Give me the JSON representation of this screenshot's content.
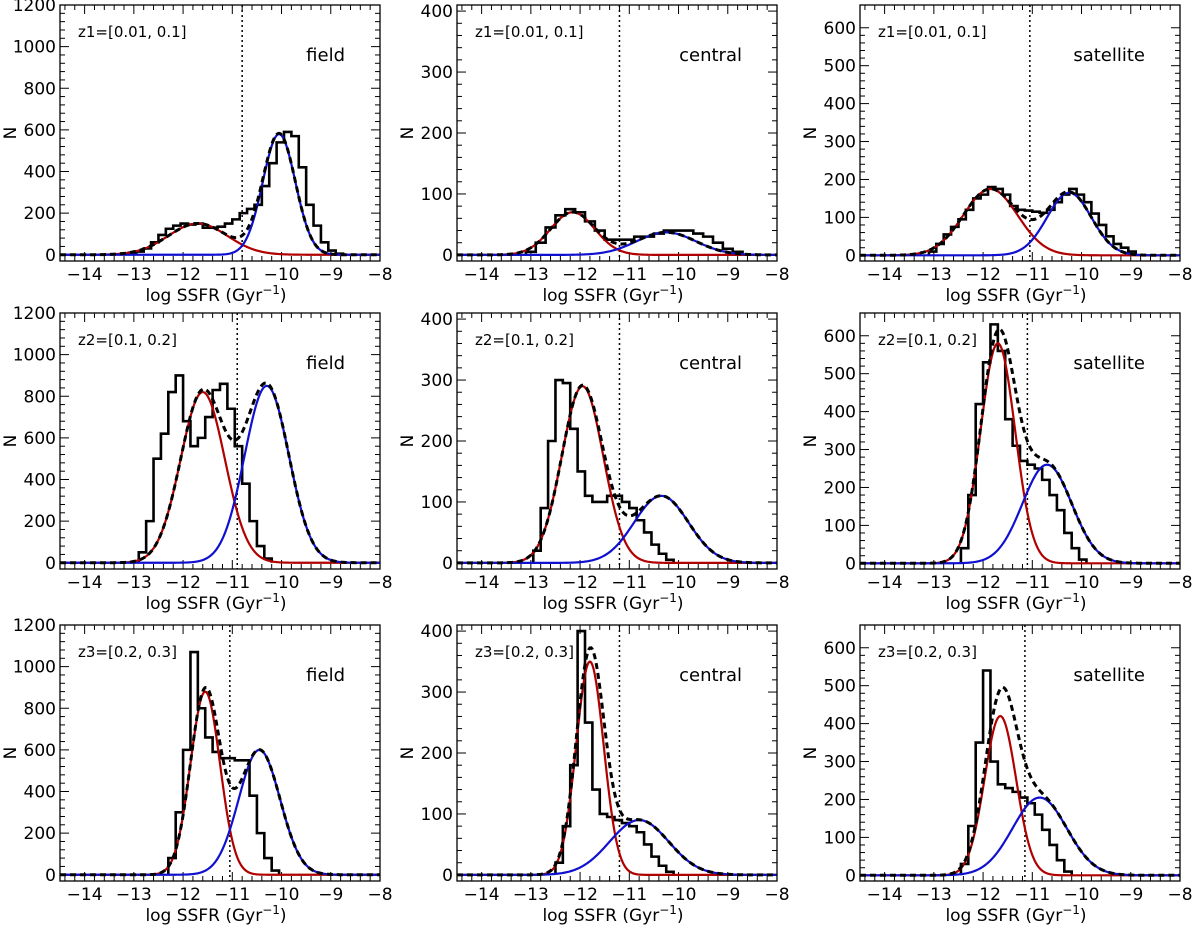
{
  "chart_data": [
    {
      "panel": "z1-field",
      "type": "histogram",
      "z_label": "z1=[0.01, 0.1]",
      "population": "field",
      "ylim": [
        -30,
        1200
      ],
      "yticks": [
        0,
        200,
        400,
        600,
        800,
        1000,
        1200
      ],
      "xlim": [
        -14.5,
        -8
      ],
      "xticks": [
        -14,
        -13,
        -12,
        -11,
        -10,
        -9,
        -8
      ],
      "xlabel": "log SSFR (Gyr",
      "xlabel_sup": "−1",
      "xlabel_close": ")",
      "ylabel": "N",
      "divider_x": -10.8,
      "red": {
        "mu": -11.7,
        "sigma": 0.6,
        "amp": 150
      },
      "blue": {
        "mu": -10.05,
        "sigma": 0.33,
        "amp": 580
      },
      "bins": {
        "start": -13.25,
        "width": 0.15,
        "values": [
          5,
          10,
          15,
          30,
          60,
          95,
          125,
          140,
          150,
          145,
          150,
          130,
          130,
          135,
          150,
          170,
          200,
          220,
          240,
          330,
          440,
          540,
          590,
          570,
          420,
          240,
          140,
          60,
          20,
          5
        ]
      }
    },
    {
      "panel": "z1-central",
      "type": "histogram",
      "z_label": "z1=[0.01, 0.1]",
      "population": "central",
      "ylim": [
        -10,
        410
      ],
      "yticks": [
        0,
        100,
        200,
        300,
        400
      ],
      "xlim": [
        -14.5,
        -8
      ],
      "xticks": [
        -14,
        -13,
        -12,
        -11,
        -10,
        -9,
        -8
      ],
      "xlabel": "log SSFR (Gyr",
      "xlabel_sup": "−1",
      "xlabel_close": ")",
      "ylabel": "N",
      "divider_x": -11.2,
      "red": {
        "mu": -12.15,
        "sigma": 0.45,
        "amp": 70
      },
      "blue": {
        "mu": -10.25,
        "sigma": 0.6,
        "amp": 37
      },
      "bins": {
        "start": -13.1,
        "width": 0.2,
        "values": [
          5,
          20,
          45,
          65,
          75,
          70,
          55,
          40,
          25,
          25,
          25,
          30,
          30,
          35,
          40,
          40,
          40,
          35,
          30,
          20,
          10,
          5
        ]
      }
    },
    {
      "panel": "z1-satellite",
      "type": "histogram",
      "z_label": "z1=[0.01, 0.1]",
      "population": "satellite",
      "ylim": [
        -15,
        660
      ],
      "yticks": [
        0,
        100,
        200,
        300,
        400,
        500,
        600
      ],
      "xlim": [
        -14.5,
        -8
      ],
      "xticks": [
        -14,
        -13,
        -12,
        -11,
        -10,
        -9,
        -8
      ],
      "xlabel": "log SSFR (Gyr",
      "xlabel_sup": "−1",
      "xlabel_close": ")",
      "ylabel": "N",
      "divider_x": -11.05,
      "red": {
        "mu": -11.85,
        "sigma": 0.55,
        "amp": 175
      },
      "blue": {
        "mu": -10.25,
        "sigma": 0.45,
        "amp": 165
      },
      "bins": {
        "start": -13.1,
        "width": 0.15,
        "values": [
          10,
          30,
          55,
          75,
          95,
          120,
          150,
          160,
          180,
          175,
          160,
          130,
          120,
          118,
          115,
          112,
          120,
          140,
          160,
          175,
          160,
          140,
          110,
          80,
          50,
          30,
          20,
          10
        ]
      }
    },
    {
      "panel": "z2-field",
      "type": "histogram",
      "z_label": "z2=[0.1, 0.2]",
      "population": "field",
      "ylim": [
        -30,
        1200
      ],
      "yticks": [
        0,
        200,
        400,
        600,
        800,
        1000,
        1200
      ],
      "xlim": [
        -14.5,
        -8
      ],
      "xticks": [
        -14,
        -13,
        -12,
        -11,
        -10,
        -9,
        -8
      ],
      "xlabel": "log SSFR (Gyr",
      "xlabel_sup": "−1",
      "xlabel_close": ")",
      "ylabel": "N",
      "divider_x": -10.9,
      "red": {
        "mu": -11.6,
        "sigma": 0.45,
        "amp": 820
      },
      "blue": {
        "mu": -10.3,
        "sigma": 0.45,
        "amp": 850
      },
      "bins": {
        "start": -12.9,
        "width": 0.15,
        "values": [
          50,
          200,
          500,
          620,
          820,
          900,
          680,
          560,
          600,
          700,
          830,
          860,
          740,
          560,
          380,
          200,
          80,
          20
        ]
      }
    },
    {
      "panel": "z2-central",
      "type": "histogram",
      "z_label": "z2=[0.1, 0.2]",
      "population": "central",
      "ylim": [
        -10,
        410
      ],
      "yticks": [
        0,
        100,
        200,
        300,
        400
      ],
      "xlim": [
        -14.5,
        -8
      ],
      "xticks": [
        -14,
        -13,
        -12,
        -11,
        -10,
        -9,
        -8
      ],
      "xlabel": "log SSFR (Gyr",
      "xlabel_sup": "−1",
      "xlabel_close": ")",
      "ylabel": "N",
      "divider_x": -11.2,
      "red": {
        "mu": -11.95,
        "sigma": 0.42,
        "amp": 290
      },
      "blue": {
        "mu": -10.35,
        "sigma": 0.55,
        "amp": 110
      },
      "bins": {
        "start": -12.95,
        "width": 0.15,
        "values": [
          20,
          90,
          200,
          300,
          295,
          220,
          150,
          110,
          100,
          100,
          110,
          110,
          100,
          90,
          70,
          50,
          30,
          15,
          5
        ]
      }
    },
    {
      "panel": "z2-satellite",
      "type": "histogram",
      "z_label": "z2=[0.1, 0.2]",
      "population": "satellite",
      "ylim": [
        -15,
        660
      ],
      "yticks": [
        0,
        100,
        200,
        300,
        400,
        500,
        600
      ],
      "xlim": [
        -14.5,
        -8
      ],
      "xticks": [
        -14,
        -13,
        -12,
        -11,
        -10,
        -9,
        -8
      ],
      "xlabel": "log SSFR (Gyr",
      "xlabel_sup": "−1",
      "xlabel_close": ")",
      "ylabel": "N",
      "divider_x": -11.1,
      "red": {
        "mu": -11.7,
        "sigma": 0.35,
        "amp": 580
      },
      "blue": {
        "mu": -10.7,
        "sigma": 0.5,
        "amp": 260
      },
      "bins": {
        "start": -12.45,
        "width": 0.15,
        "values": [
          40,
          180,
          420,
          530,
          630,
          560,
          380,
          310,
          270,
          260,
          250,
          220,
          180,
          140,
          80,
          40,
          10
        ]
      }
    },
    {
      "panel": "z3-field",
      "type": "histogram",
      "z_label": "z3=[0.2, 0.3]",
      "population": "field",
      "ylim": [
        -30,
        1200
      ],
      "yticks": [
        0,
        200,
        400,
        600,
        800,
        1000,
        1200
      ],
      "xlim": [
        -14.5,
        -8
      ],
      "xticks": [
        -14,
        -13,
        -12,
        -11,
        -10,
        -9,
        -8
      ],
      "xlabel": "log SSFR (Gyr",
      "xlabel_sup": "−1",
      "xlabel_close": ")",
      "ylabel": "N",
      "divider_x": -11.05,
      "red": {
        "mu": -11.55,
        "sigma": 0.3,
        "amp": 880
      },
      "blue": {
        "mu": -10.45,
        "sigma": 0.42,
        "amp": 600
      },
      "bins": {
        "start": -12.3,
        "width": 0.15,
        "values": [
          80,
          300,
          600,
          1070,
          800,
          660,
          590,
          560,
          560,
          550,
          550,
          380,
          200,
          80,
          20
        ]
      }
    },
    {
      "panel": "z3-central",
      "type": "histogram",
      "z_label": "z3=[0.2, 0.3]",
      "population": "central",
      "ylim": [
        -10,
        410
      ],
      "yticks": [
        0,
        100,
        200,
        300,
        400
      ],
      "xlim": [
        -14.5,
        -8
      ],
      "xticks": [
        -14,
        -13,
        -12,
        -11,
        -10,
        -9,
        -8
      ],
      "xlabel": "log SSFR (Gyr",
      "xlabel_sup": "−1",
      "xlabel_close": ")",
      "ylabel": "N",
      "divider_x": -11.2,
      "red": {
        "mu": -11.8,
        "sigma": 0.28,
        "amp": 350
      },
      "blue": {
        "mu": -10.8,
        "sigma": 0.6,
        "amp": 90
      },
      "bins": {
        "start": -12.5,
        "width": 0.15,
        "values": [
          20,
          80,
          180,
          400,
          250,
          140,
          100,
          95,
          90,
          85,
          80,
          70,
          50,
          30,
          15,
          5
        ]
      }
    },
    {
      "panel": "z3-satellite",
      "type": "histogram",
      "z_label": "z3=[0.2, 0.3]",
      "population": "satellite",
      "ylim": [
        -15,
        660
      ],
      "yticks": [
        0,
        100,
        200,
        300,
        400,
        500,
        600
      ],
      "xlim": [
        -14.5,
        -8
      ],
      "xticks": [
        -14,
        -13,
        -12,
        -11,
        -10,
        -9,
        -8
      ],
      "xlabel": "log SSFR (Gyr",
      "xlabel_sup": "−1",
      "xlabel_close": ")",
      "ylabel": "N",
      "divider_x": -11.15,
      "red": {
        "mu": -11.65,
        "sigma": 0.32,
        "amp": 420
      },
      "blue": {
        "mu": -10.85,
        "sigma": 0.55,
        "amp": 205
      },
      "bins": {
        "start": -12.45,
        "width": 0.15,
        "values": [
          30,
          130,
          350,
          540,
          300,
          240,
          230,
          220,
          205,
          190,
          160,
          120,
          80,
          40,
          10
        ]
      }
    }
  ],
  "colors": {
    "red_component": "#b00000",
    "blue_component": "#1010d0",
    "histogram": "#000000",
    "total_fit": "#000000"
  }
}
